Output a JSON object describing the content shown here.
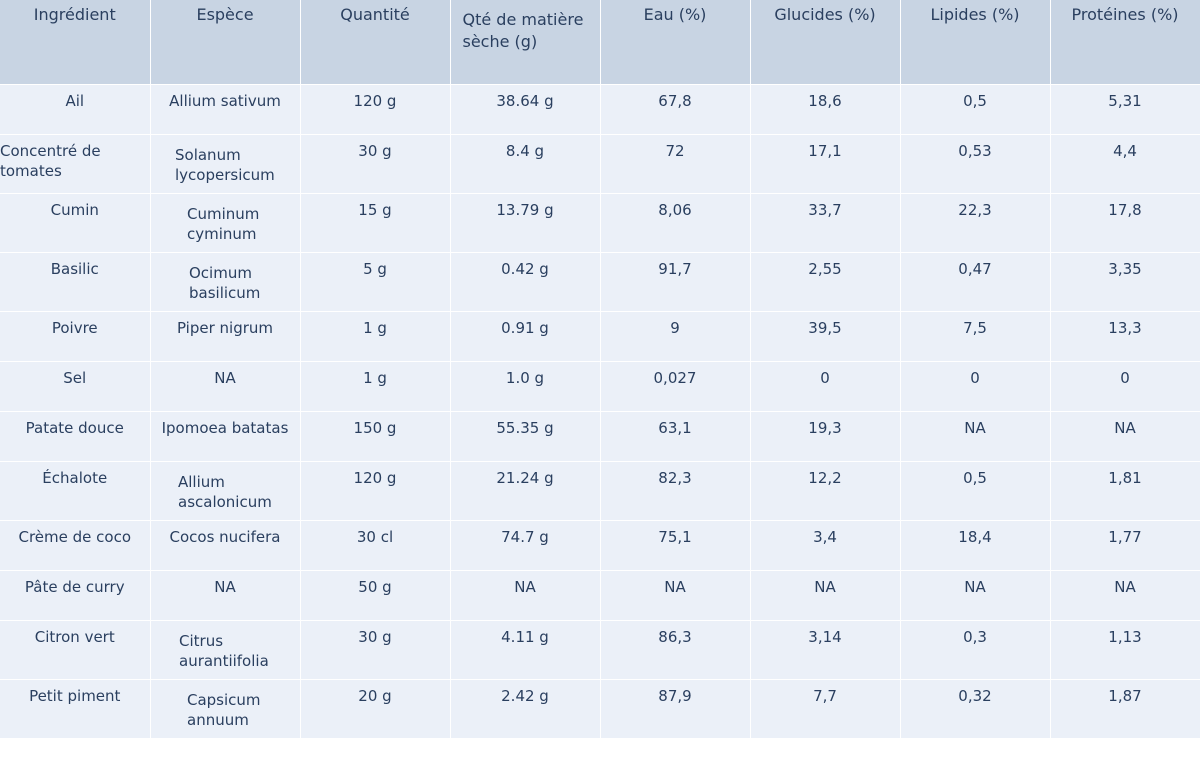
{
  "table": {
    "headers": [
      "Ingrédient",
      "Espèce",
      "Quantité",
      "Qté de matière  sèche (g)",
      "Eau (%)",
      "Glucides (%)",
      "Lipides (%)",
      "Protéines (%)"
    ],
    "rows": [
      [
        "Ail",
        "Allium sativum",
        "120 g",
        "38.64 g",
        "67,8",
        "18,6",
        "0,5",
        "5,31"
      ],
      [
        "Concentré de tomates",
        "Solanum lycopersicum",
        "30 g",
        "8.4 g",
        "72",
        "17,1",
        "0,53",
        "4,4"
      ],
      [
        "Cumin",
        "Cuminum cyminum",
        "15 g",
        "13.79 g",
        "8,06",
        "33,7",
        "22,3",
        "17,8"
      ],
      [
        "Basilic",
        "Ocimum basilicum",
        "5 g",
        "0.42 g",
        "91,7",
        "2,55",
        "0,47",
        "3,35"
      ],
      [
        "Poivre",
        "Piper nigrum",
        "1 g",
        "0.91 g",
        "9",
        "39,5",
        "7,5",
        "13,3"
      ],
      [
        "Sel",
        "NA",
        "1 g",
        "1.0 g",
        "0,027",
        "0",
        "0",
        "0"
      ],
      [
        "Patate douce",
        "Ipomoea batatas",
        "150 g",
        "55.35 g",
        "63,1",
        "19,3",
        "NA",
        "NA"
      ],
      [
        "Échalote",
        "Allium ascalonicum",
        "120 g",
        "21.24 g",
        "82,3",
        "12,2",
        "0,5",
        "1,81"
      ],
      [
        "Crème de coco",
        "Cocos nucifera",
        "30 cl",
        "74.7 g",
        "75,1",
        "3,4",
        "18,4",
        "1,77"
      ],
      [
        "Pâte de curry",
        "NA",
        "50 g",
        "NA",
        "NA",
        "NA",
        "NA",
        "NA"
      ],
      [
        "Citron vert",
        "Citrus aurantiifolia",
        "30 g",
        "4.11 g",
        "86,3",
        "3,14",
        "0,3",
        "1,13"
      ],
      [
        "Petit piment",
        "Capsicum annuum",
        "20 g",
        "2.42 g",
        "87,9",
        "7,7",
        "0,32",
        "1,87"
      ]
    ]
  },
  "colors": {
    "header_bg": "#c8d4e3",
    "cell_bg": "#ebf0f8",
    "text": "#2a3f5f"
  }
}
